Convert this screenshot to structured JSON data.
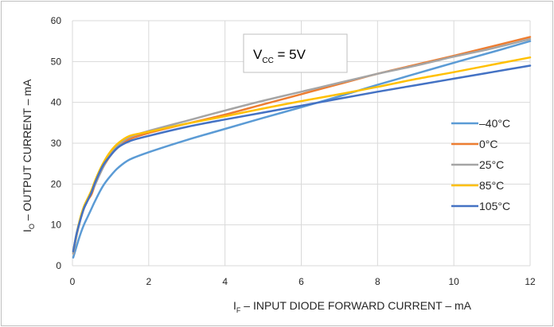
{
  "chart_data": {
    "type": "line",
    "xlabel": "I",
    "xlabel_sub": "F",
    "xlabel_rest": " – INPUT DIODE FORWARD CURRENT – mA",
    "ylabel": "I",
    "ylabel_sub": "O",
    "ylabel_rest": " – OUTPUT CURRENT – mA",
    "annotation": {
      "main": "V",
      "sub": "CC",
      "rest": " = 5V"
    },
    "xlim": [
      0,
      12
    ],
    "ylim": [
      0,
      60
    ],
    "xticks": [
      0,
      2,
      4,
      6,
      8,
      10,
      12
    ],
    "yticks": [
      0,
      10,
      20,
      30,
      40,
      50,
      60
    ],
    "grid": true,
    "legend_position": "right",
    "series": [
      {
        "name": "–40°C",
        "color": "#5b9bd5",
        "x": [
          0.02,
          0.1,
          0.2,
          0.3,
          0.4,
          0.5,
          0.6,
          0.8,
          1.0,
          1.2,
          1.5,
          2,
          3,
          4,
          5,
          6,
          7,
          8,
          9,
          10,
          11,
          12
        ],
        "y": [
          2,
          4.5,
          7.5,
          10,
          12,
          14,
          16,
          19.5,
          22,
          24,
          26,
          27.8,
          30.8,
          33.5,
          36.2,
          38.8,
          41.5,
          44.3,
          47,
          49.7,
          52.3,
          55
        ]
      },
      {
        "name": "0°C",
        "color": "#ed7d31",
        "x": [
          0.02,
          0.1,
          0.2,
          0.3,
          0.4,
          0.5,
          0.6,
          0.8,
          1.0,
          1.2,
          1.5,
          2,
          3,
          4,
          5,
          6,
          7,
          8,
          9,
          10,
          11,
          12
        ],
        "y": [
          3,
          7,
          11,
          14,
          16,
          17.5,
          20,
          24,
          27,
          29,
          31,
          32.5,
          34.8,
          37,
          39.5,
          42,
          44.5,
          47,
          49.2,
          51.4,
          53.7,
          56
        ]
      },
      {
        "name": "25°C",
        "color": "#a5a5a5",
        "x": [
          0.02,
          0.1,
          0.2,
          0.3,
          0.4,
          0.5,
          0.6,
          0.8,
          1.0,
          1.2,
          1.5,
          2,
          3,
          4,
          5,
          6,
          7,
          8,
          9,
          10,
          11,
          12
        ],
        "y": [
          3,
          7,
          11,
          14,
          16,
          18,
          20,
          24,
          27.5,
          29.5,
          31.5,
          33,
          35.5,
          38,
          40.4,
          42.6,
          44.8,
          47,
          49,
          51.2,
          53.2,
          55.5
        ]
      },
      {
        "name": "85°C",
        "color": "#ffc000",
        "x": [
          0.02,
          0.1,
          0.2,
          0.3,
          0.4,
          0.5,
          0.6,
          0.8,
          1.0,
          1.2,
          1.5,
          2,
          3,
          4,
          5,
          6,
          7,
          8,
          9,
          10,
          11,
          12
        ],
        "y": [
          3.5,
          7.5,
          11.5,
          14.5,
          16.5,
          18.5,
          21,
          25,
          28,
          30,
          31.8,
          32.8,
          34.8,
          36.6,
          38.5,
          40.3,
          42,
          43.8,
          45.7,
          47.4,
          49.2,
          51
        ]
      },
      {
        "name": "105°C",
        "color": "#4472c4",
        "x": [
          0.02,
          0.1,
          0.2,
          0.3,
          0.4,
          0.5,
          0.6,
          0.8,
          1.0,
          1.2,
          1.5,
          2,
          3,
          4,
          5,
          6,
          7,
          8,
          9,
          10,
          11,
          12
        ],
        "y": [
          3.5,
          7.5,
          11,
          14,
          16,
          18,
          20.5,
          24.5,
          27,
          29,
          30.5,
          31.8,
          34,
          35.8,
          37.5,
          39.2,
          40.9,
          42.6,
          44.2,
          45.8,
          47.4,
          49
        ]
      }
    ]
  }
}
